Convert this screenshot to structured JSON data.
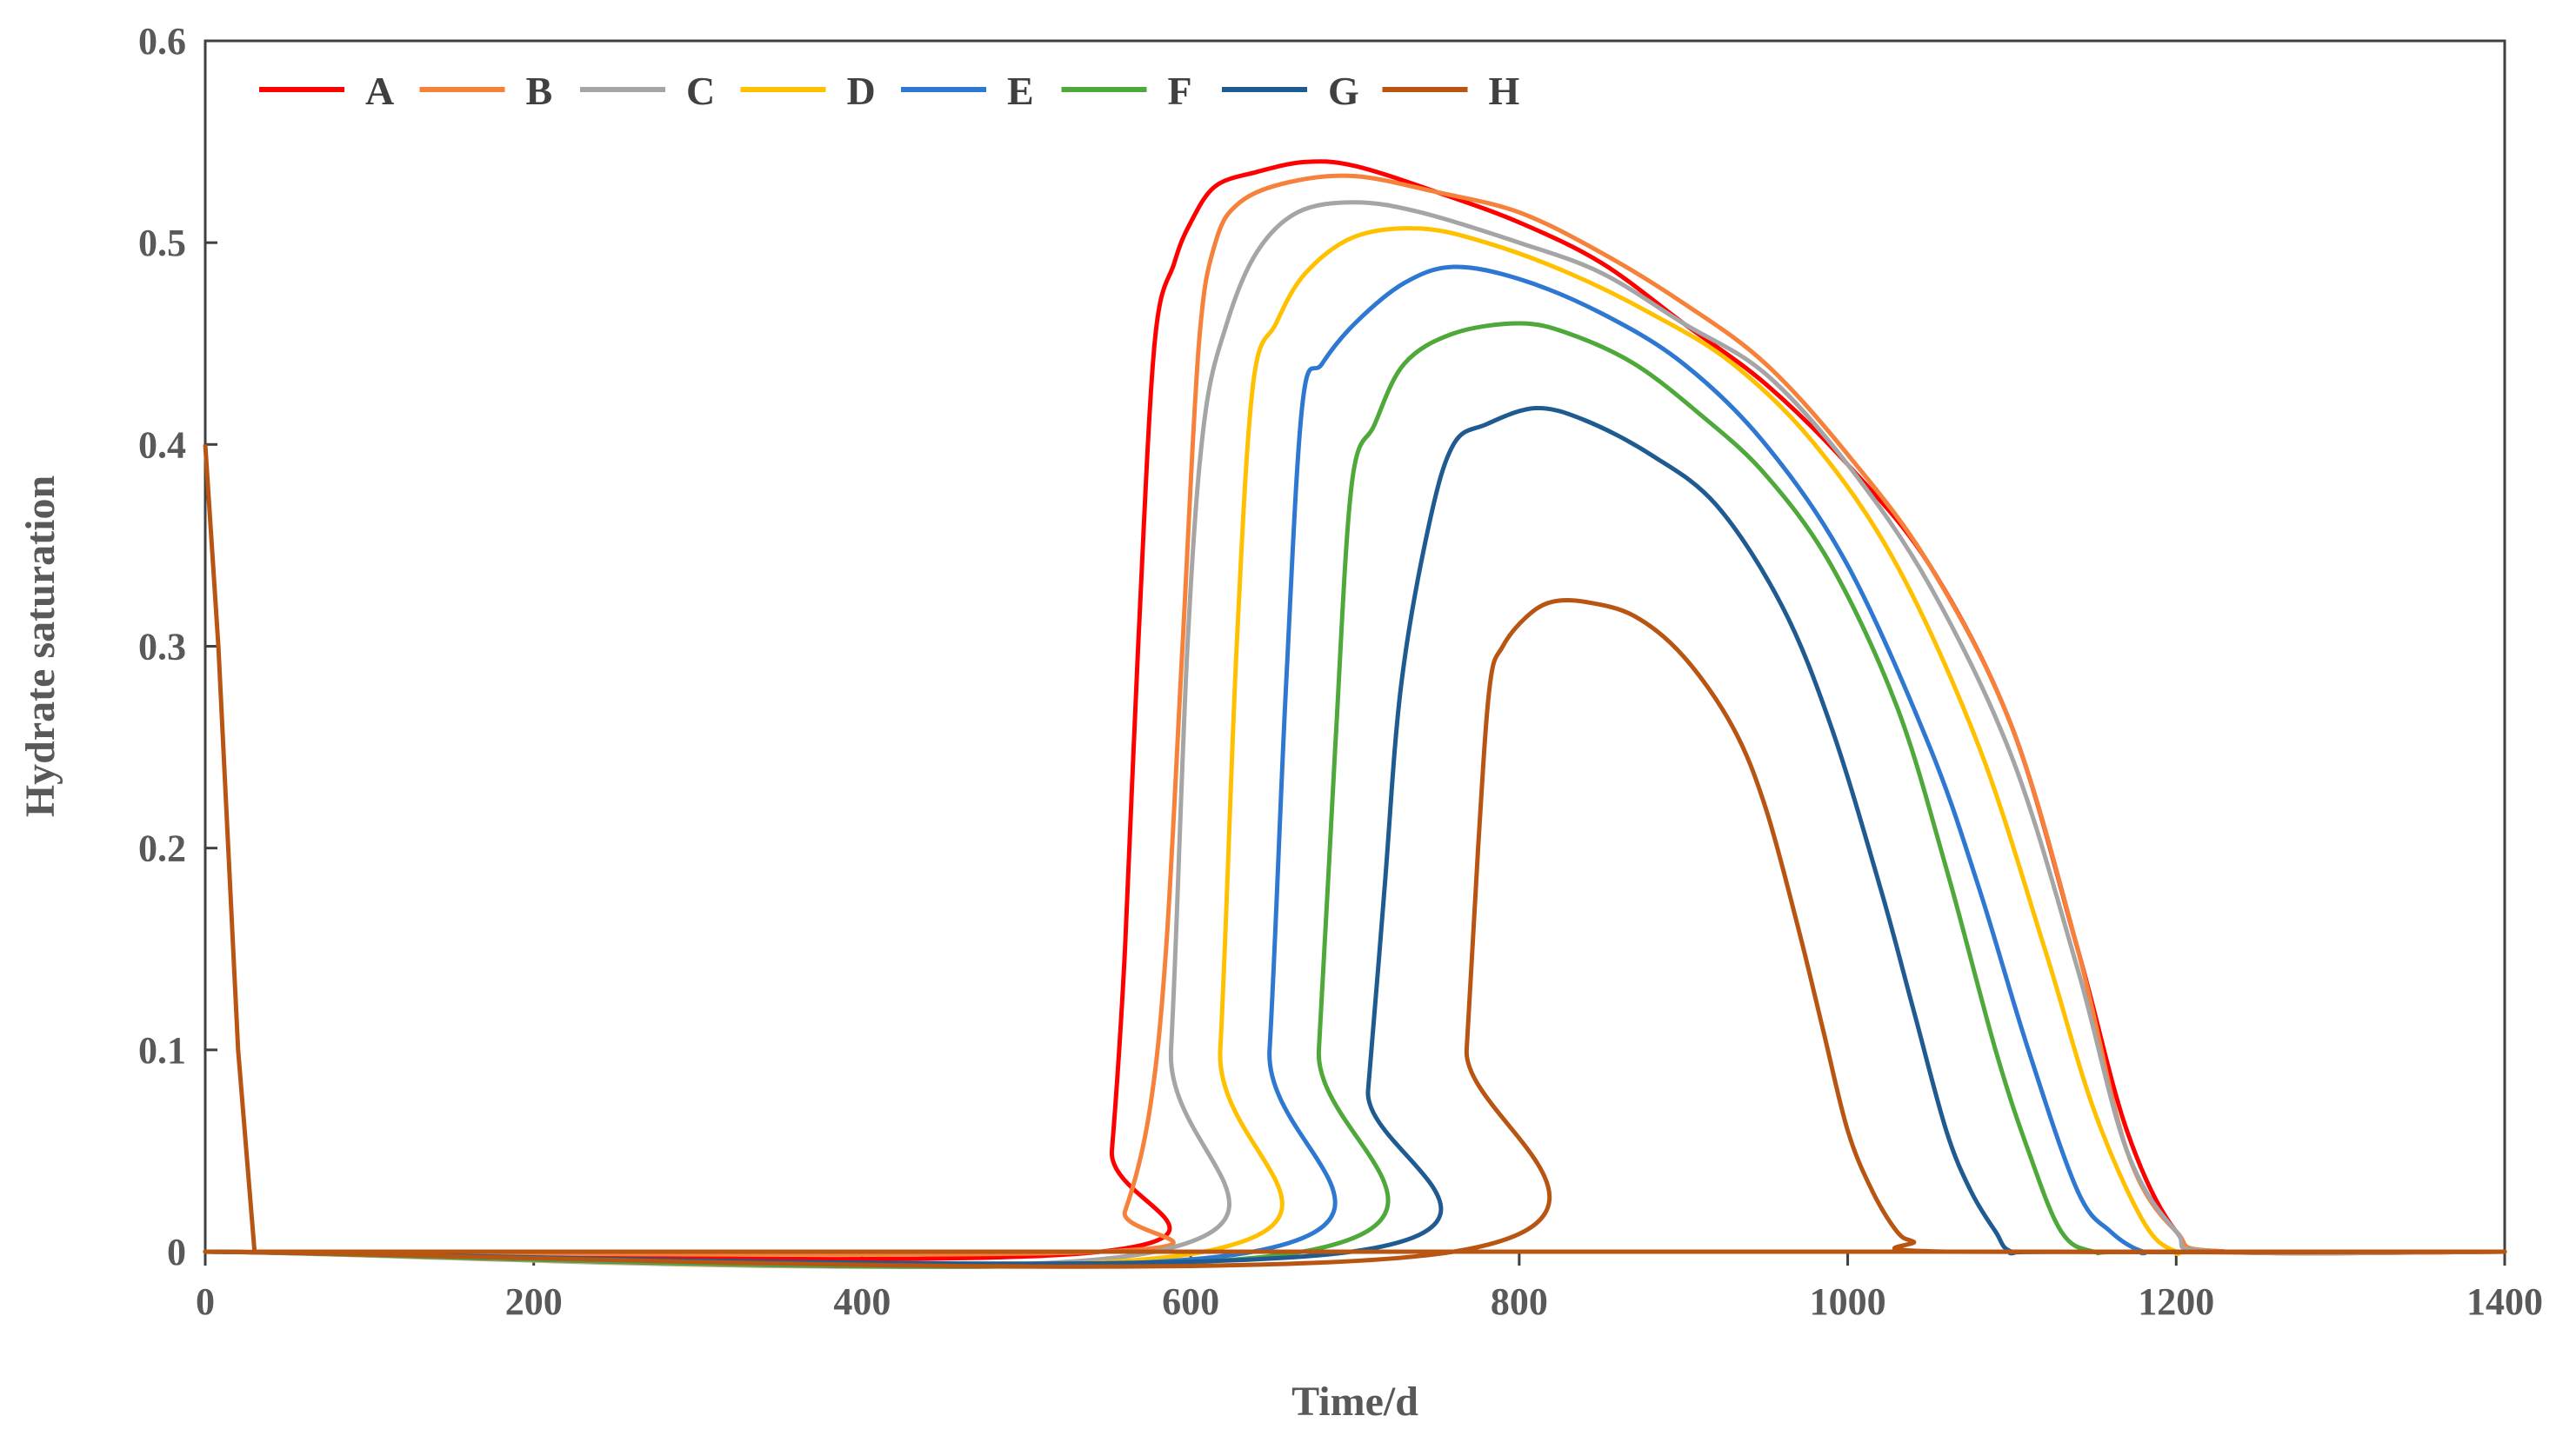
{
  "chart_data": {
    "type": "line",
    "title": "",
    "xlabel": "Time/d",
    "ylabel": "Hydrate saturation",
    "xlim": [
      0,
      1400
    ],
    "ylim": [
      0,
      0.6
    ],
    "xticks": [
      0,
      200,
      400,
      600,
      800,
      1000,
      1200,
      1400
    ],
    "yticks": [
      0,
      0.1,
      0.2,
      0.3,
      0.4,
      0.5,
      0.6
    ],
    "xtick_labels": [
      "0",
      "200",
      "400",
      "600",
      "800",
      "1000",
      "1200",
      "1400"
    ],
    "ytick_labels": [
      "0",
      "0.1",
      "0.2",
      "0.3",
      "0.4",
      "0.5",
      "0.6"
    ],
    "legend_position": "top-left",
    "initial_drop": {
      "x": [
        0,
        8,
        20,
        30,
        1400
      ],
      "y": [
        0.4,
        0.3,
        0.1,
        0,
        0
      ]
    },
    "series": [
      {
        "name": "A",
        "color": "#FF0000",
        "x": [
          0,
          545,
          552,
          560,
          568,
          578,
          590,
          600,
          615,
          640,
          670,
          700,
          750,
          800,
          850,
          900,
          950,
          1000,
          1050,
          1100,
          1140,
          1170,
          1200,
          1230,
          1400
        ],
        "y": [
          0,
          0,
          0.05,
          0.15,
          0.3,
          0.45,
          0.49,
          0.51,
          0.528,
          0.535,
          0.54,
          0.538,
          0.525,
          0.51,
          0.49,
          0.46,
          0.43,
          0.39,
          0.34,
          0.26,
          0.15,
          0.06,
          0.01,
          0,
          0
        ]
      },
      {
        "name": "B",
        "color": "#F5813B",
        "x": [
          0,
          545,
          560,
          575,
          585,
          595,
          605,
          615,
          630,
          660,
          700,
          750,
          800,
          850,
          900,
          950,
          1000,
          1050,
          1100,
          1140,
          1170,
          1200,
          1230,
          1400
        ],
        "y": [
          0,
          0,
          0.02,
          0.07,
          0.15,
          0.3,
          0.45,
          0.5,
          0.52,
          0.53,
          0.533,
          0.525,
          0.515,
          0.495,
          0.47,
          0.44,
          0.395,
          0.34,
          0.26,
          0.15,
          0.05,
          0.01,
          0,
          0
        ]
      },
      {
        "name": "C",
        "color": "#A5A5A5",
        "x": [
          0,
          578,
          588,
          598,
          608,
          622,
          640,
          665,
          700,
          740,
          800,
          850,
          900,
          950,
          1000,
          1050,
          1100,
          1140,
          1170,
          1200,
          1225,
          1400
        ],
        "y": [
          0,
          0,
          0.1,
          0.3,
          0.41,
          0.46,
          0.495,
          0.515,
          0.52,
          0.515,
          0.5,
          0.485,
          0.46,
          0.435,
          0.39,
          0.33,
          0.245,
          0.14,
          0.05,
          0.01,
          0,
          0
        ]
      },
      {
        "name": "D",
        "color": "#FFC000",
        "x": [
          0,
          608,
          618,
          628,
          638,
          652,
          670,
          700,
          740,
          780,
          830,
          880,
          930,
          980,
          1030,
          1080,
          1120,
          1150,
          1180,
          1200,
          1220,
          1400
        ],
        "y": [
          0,
          0,
          0.1,
          0.3,
          0.43,
          0.46,
          0.485,
          0.503,
          0.507,
          0.5,
          0.485,
          0.465,
          0.44,
          0.4,
          0.34,
          0.25,
          0.15,
          0.07,
          0.015,
          0,
          0,
          0
        ]
      },
      {
        "name": "E",
        "color": "#2F78D2",
        "x": [
          0,
          638,
          648,
          658,
          668,
          680,
          700,
          730,
          760,
          800,
          850,
          900,
          950,
          1000,
          1050,
          1080,
          1110,
          1140,
          1160,
          1180,
          1200,
          1400
        ],
        "y": [
          0,
          0,
          0.1,
          0.28,
          0.42,
          0.44,
          0.46,
          0.48,
          0.488,
          0.482,
          0.465,
          0.44,
          0.4,
          0.34,
          0.25,
          0.18,
          0.1,
          0.03,
          0.01,
          0,
          0,
          0
        ]
      },
      {
        "name": "F",
        "color": "#4EA83A",
        "x": [
          0,
          668,
          678,
          688,
          698,
          712,
          730,
          760,
          800,
          830,
          870,
          910,
          950,
          990,
          1030,
          1060,
          1090,
          1110,
          1130,
          1150,
          1180,
          1400
        ],
        "y": [
          0,
          0,
          0.1,
          0.25,
          0.38,
          0.41,
          0.44,
          0.455,
          0.46,
          0.455,
          0.44,
          0.415,
          0.385,
          0.34,
          0.27,
          0.19,
          0.1,
          0.05,
          0.01,
          0,
          0,
          0
        ]
      },
      {
        "name": "G",
        "color": "#1F5A91",
        "x": [
          0,
          698,
          708,
          718,
          728,
          745,
          760,
          780,
          810,
          840,
          880,
          920,
          960,
          990,
          1020,
          1040,
          1060,
          1075,
          1090,
          1100,
          1130,
          1400
        ],
        "y": [
          0,
          0,
          0.08,
          0.18,
          0.28,
          0.36,
          0.4,
          0.41,
          0.418,
          0.412,
          0.395,
          0.37,
          0.32,
          0.26,
          0.18,
          0.12,
          0.06,
          0.03,
          0.01,
          0,
          0,
          0
        ]
      },
      {
        "name": "H",
        "color": "#B85513",
        "x": [
          0,
          760,
          768,
          775,
          782,
          790,
          805,
          820,
          840,
          870,
          900,
          930,
          950,
          970,
          985,
          1000,
          1015,
          1030,
          1040,
          1060,
          1400
        ],
        "y": [
          0,
          0,
          0.1,
          0.2,
          0.28,
          0.3,
          0.315,
          0.322,
          0.322,
          0.315,
          0.295,
          0.26,
          0.22,
          0.16,
          0.11,
          0.06,
          0.03,
          0.01,
          0.005,
          0,
          0
        ]
      }
    ]
  }
}
